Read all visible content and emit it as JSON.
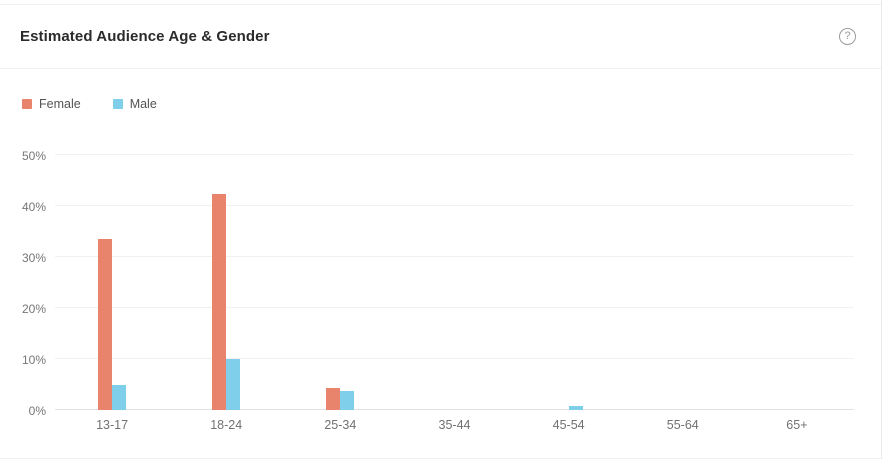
{
  "header": {
    "title": "Estimated Audience Age & Gender",
    "help_icon_glyph": "?"
  },
  "legend": {
    "items": [
      {
        "label": "Female",
        "color": "#E8836C"
      },
      {
        "label": "Male",
        "color": "#7FCFEA"
      }
    ]
  },
  "chart_data": {
    "type": "bar",
    "title": "Estimated Audience Age & Gender",
    "categories": [
      "13-17",
      "18-24",
      "25-34",
      "35-44",
      "45-54",
      "55-64",
      "65+"
    ],
    "series": [
      {
        "name": "Female",
        "color": "#E8836C",
        "values": [
          33.5,
          42.4,
          4.4,
          0,
          0,
          0,
          0
        ]
      },
      {
        "name": "Male",
        "color": "#7FCFEA",
        "values": [
          5.0,
          10.1,
          3.7,
          0,
          0.7,
          0,
          0
        ]
      }
    ],
    "unit": "%",
    "ylim": [
      0,
      50
    ],
    "y_ticks": [
      {
        "value": 0,
        "label": "0%"
      },
      {
        "value": 10,
        "label": "10%"
      },
      {
        "value": 20,
        "label": "20%"
      },
      {
        "value": 30,
        "label": "30%"
      },
      {
        "value": 40,
        "label": "40%"
      },
      {
        "value": 50,
        "label": "50%"
      }
    ],
    "grid": true,
    "legend_position": "top-left"
  },
  "colors": {
    "female": "#E8836C",
    "male": "#7FCFEA",
    "title_text": "#2B2B2B",
    "axis_text": "#767676",
    "legend_text": "#545454",
    "gridline": "#F1F1F1",
    "baseline": "#E3E3E3",
    "divider": "#EFEFEF",
    "card_bg": "#FFFFFF"
  }
}
